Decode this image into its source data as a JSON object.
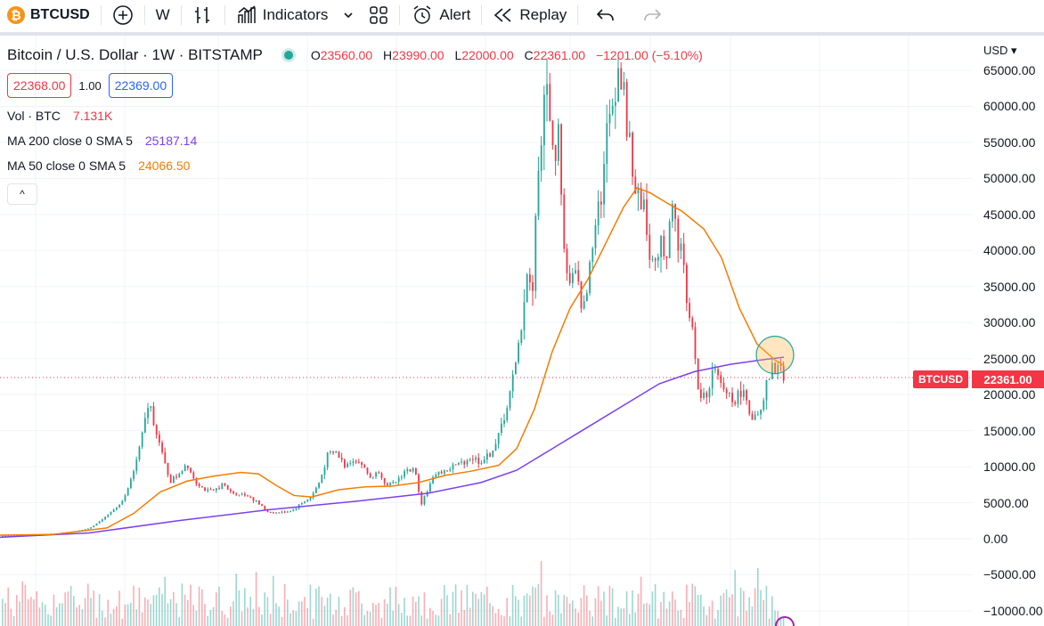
{
  "toolbar": {
    "symbol_logo": "₿",
    "symbol": "BTCUSD",
    "add_icon": "plus-circle-icon",
    "interval": "W",
    "indicators_label": "Indicators",
    "alert_label": "Alert",
    "replay_label": "Replay"
  },
  "legend": {
    "title": "Bitcoin / U.S. Dollar · 1W · BITSTAMP",
    "market_status": "open",
    "ohlc": {
      "o_label": "O",
      "o": "23560.00",
      "h_label": "H",
      "h": "23990.00",
      "l_label": "L",
      "l": "22000.00",
      "c_label": "C",
      "c": "22361.00",
      "change": "−1201.00 (−5.10%)"
    },
    "bid": "22368.00",
    "spread": "1.00",
    "ask": "22369.00",
    "volume": {
      "label": "Vol · BTC",
      "value": "7.131K",
      "color": "#f23645"
    },
    "ma200": {
      "label": "MA 200 close 0 SMA 5",
      "value": "25187.14",
      "color": "#7b3ff2"
    },
    "ma50": {
      "label": "MA 50 close 0 SMA 5",
      "value": "24066.50",
      "color": "#f57c00"
    },
    "collapse_symbol": "^"
  },
  "price_axis": {
    "currency": "USD ▾",
    "last_price_symbol": "BTCUSD",
    "last_price": "22361.00",
    "labels": [
      "65000.00",
      "60000.00",
      "55000.00",
      "50000.00",
      "45000.00",
      "40000.00",
      "35000.00",
      "30000.00",
      "25000.00",
      "20000.00",
      "15000.00",
      "10000.00",
      "5000.00",
      "0.00",
      "−5000.00",
      "−10000.00"
    ]
  },
  "chart_data": {
    "type": "candlestick",
    "symbol": "BTCUSD",
    "interval": "1W",
    "up_color": "#26a69a",
    "down_color": "#f23645",
    "ylim": [
      -10000,
      65000
    ],
    "last_price": 22361,
    "close_path": [
      [
        0,
        400
      ],
      [
        40,
        520
      ],
      [
        80,
        900
      ],
      [
        100,
        1400
      ],
      [
        120,
        3000
      ],
      [
        140,
        5500
      ],
      [
        150,
        9000
      ],
      [
        160,
        14000
      ],
      [
        168,
        19200
      ],
      [
        176,
        15000
      ],
      [
        184,
        11000
      ],
      [
        192,
        8000
      ],
      [
        200,
        8800
      ],
      [
        210,
        10500
      ],
      [
        220,
        8000
      ],
      [
        230,
        6800
      ],
      [
        240,
        6500
      ],
      [
        250,
        7600
      ],
      [
        260,
        6400
      ],
      [
        270,
        6200
      ],
      [
        280,
        6000
      ],
      [
        290,
        5000
      ],
      [
        300,
        3800
      ],
      [
        310,
        3600
      ],
      [
        320,
        3700
      ],
      [
        330,
        4000
      ],
      [
        340,
        5000
      ],
      [
        350,
        5800
      ],
      [
        360,
        8000
      ],
      [
        368,
        11500
      ],
      [
        378,
        12000
      ],
      [
        388,
        10000
      ],
      [
        396,
        11200
      ],
      [
        406,
        10500
      ],
      [
        416,
        8500
      ],
      [
        426,
        9300
      ],
      [
        436,
        7200
      ],
      [
        446,
        8000
      ],
      [
        456,
        9500
      ],
      [
        466,
        9600
      ],
      [
        474,
        5000
      ],
      [
        480,
        6600
      ],
      [
        490,
        9200
      ],
      [
        500,
        9300
      ],
      [
        510,
        10100
      ],
      [
        520,
        10600
      ],
      [
        530,
        11300
      ],
      [
        540,
        10700
      ],
      [
        550,
        11500
      ],
      [
        560,
        14000
      ],
      [
        570,
        18500
      ],
      [
        580,
        24000
      ],
      [
        586,
        30000
      ],
      [
        592,
        37000
      ],
      [
        598,
        33500
      ],
      [
        604,
        50000
      ],
      [
        610,
        58000
      ],
      [
        616,
        63500
      ],
      [
        622,
        52000
      ],
      [
        628,
        57000
      ],
      [
        634,
        40000
      ],
      [
        640,
        35000
      ],
      [
        646,
        37000
      ],
      [
        652,
        33000
      ],
      [
        658,
        32000
      ],
      [
        664,
        40000
      ],
      [
        670,
        46000
      ],
      [
        676,
        48000
      ],
      [
        682,
        56000
      ],
      [
        688,
        60000
      ],
      [
        694,
        66000
      ],
      [
        700,
        62000
      ],
      [
        706,
        56000
      ],
      [
        712,
        50000
      ],
      [
        718,
        46000
      ],
      [
        724,
        47000
      ],
      [
        730,
        40000
      ],
      [
        736,
        37000
      ],
      [
        742,
        43000
      ],
      [
        748,
        38000
      ],
      [
        754,
        47500
      ],
      [
        760,
        42000
      ],
      [
        766,
        40000
      ],
      [
        772,
        33000
      ],
      [
        778,
        29000
      ],
      [
        784,
        20500
      ],
      [
        790,
        19500
      ],
      [
        796,
        21000
      ],
      [
        802,
        23500
      ],
      [
        808,
        21500
      ],
      [
        814,
        20500
      ],
      [
        820,
        20000
      ],
      [
        826,
        19200
      ],
      [
        832,
        20800
      ],
      [
        838,
        19500
      ],
      [
        844,
        17000
      ],
      [
        850,
        16800
      ],
      [
        856,
        17500
      ],
      [
        862,
        21500
      ],
      [
        868,
        23500
      ],
      [
        874,
        23900
      ],
      [
        880,
        22361
      ]
    ],
    "ma50_path": [
      [
        0,
        500
      ],
      [
        60,
        600
      ],
      [
        120,
        1500
      ],
      [
        150,
        3500
      ],
      [
        180,
        6500
      ],
      [
        210,
        8000
      ],
      [
        240,
        8700
      ],
      [
        270,
        9200
      ],
      [
        290,
        9000
      ],
      [
        310,
        7400
      ],
      [
        330,
        6000
      ],
      [
        350,
        5800
      ],
      [
        380,
        6800
      ],
      [
        410,
        7200
      ],
      [
        440,
        7300
      ],
      [
        470,
        7800
      ],
      [
        500,
        8800
      ],
      [
        530,
        9400
      ],
      [
        560,
        10200
      ],
      [
        580,
        12500
      ],
      [
        600,
        18000
      ],
      [
        620,
        26000
      ],
      [
        640,
        32000
      ],
      [
        660,
        36000
      ],
      [
        680,
        41000
      ],
      [
        700,
        46000
      ],
      [
        715,
        48700
      ],
      [
        730,
        48000
      ],
      [
        750,
        46500
      ],
      [
        765,
        45500
      ],
      [
        790,
        43000
      ],
      [
        810,
        39000
      ],
      [
        830,
        32000
      ],
      [
        850,
        27000
      ],
      [
        870,
        24800
      ],
      [
        880,
        24066
      ]
    ],
    "ma200_path": [
      [
        0,
        200
      ],
      [
        100,
        800
      ],
      [
        200,
        2500
      ],
      [
        300,
        4000
      ],
      [
        400,
        5200
      ],
      [
        480,
        6300
      ],
      [
        540,
        7800
      ],
      [
        580,
        9500
      ],
      [
        620,
        12500
      ],
      [
        660,
        15500
      ],
      [
        700,
        18500
      ],
      [
        740,
        21500
      ],
      [
        780,
        23200
      ],
      [
        820,
        24200
      ],
      [
        860,
        24900
      ],
      [
        880,
        25187
      ]
    ],
    "volume_bars_present": true
  }
}
